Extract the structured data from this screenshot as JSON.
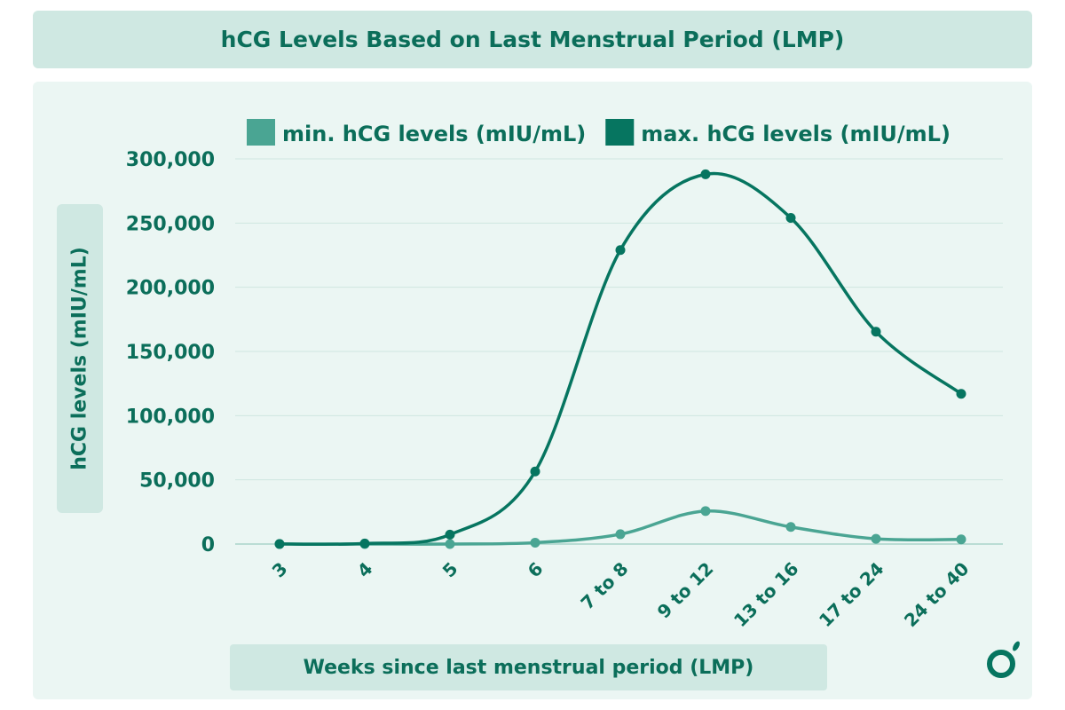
{
  "title": "hCG Levels Based on Last Menstrual Period (LMP)",
  "chart_data": {
    "type": "line",
    "title": "hCG Levels Based on Last Menstrual Period (LMP)",
    "xlabel": "Weeks since last menstrual period (LMP)",
    "ylabel": "hCG levels (mIU/mL)",
    "categories": [
      "3",
      "4",
      "5",
      "6",
      "7 to 8",
      "9 to 12",
      "13 to 16",
      "17 to 24",
      "24 to 40"
    ],
    "ylim": [
      0,
      300000
    ],
    "yticks": [
      0,
      50000,
      100000,
      150000,
      200000,
      250000,
      300000
    ],
    "ytick_labels": [
      "0",
      "50,000",
      "100,000",
      "150,000",
      "200,000",
      "250,000",
      "300,000"
    ],
    "grid": true,
    "legend_position": "top",
    "series": [
      {
        "name": "min. hCG levels (mIU/mL)",
        "color": "#4aa593",
        "values": [
          5,
          5,
          18,
          1080,
          7650,
          25700,
          13300,
          4060,
          3640
        ]
      },
      {
        "name": "max. hCG levels (mIU/mL)",
        "color": "#067560",
        "values": [
          50,
          426,
          7340,
          56500,
          229000,
          288000,
          254000,
          165400,
          117000
        ]
      }
    ]
  },
  "logo": "brand-logo"
}
